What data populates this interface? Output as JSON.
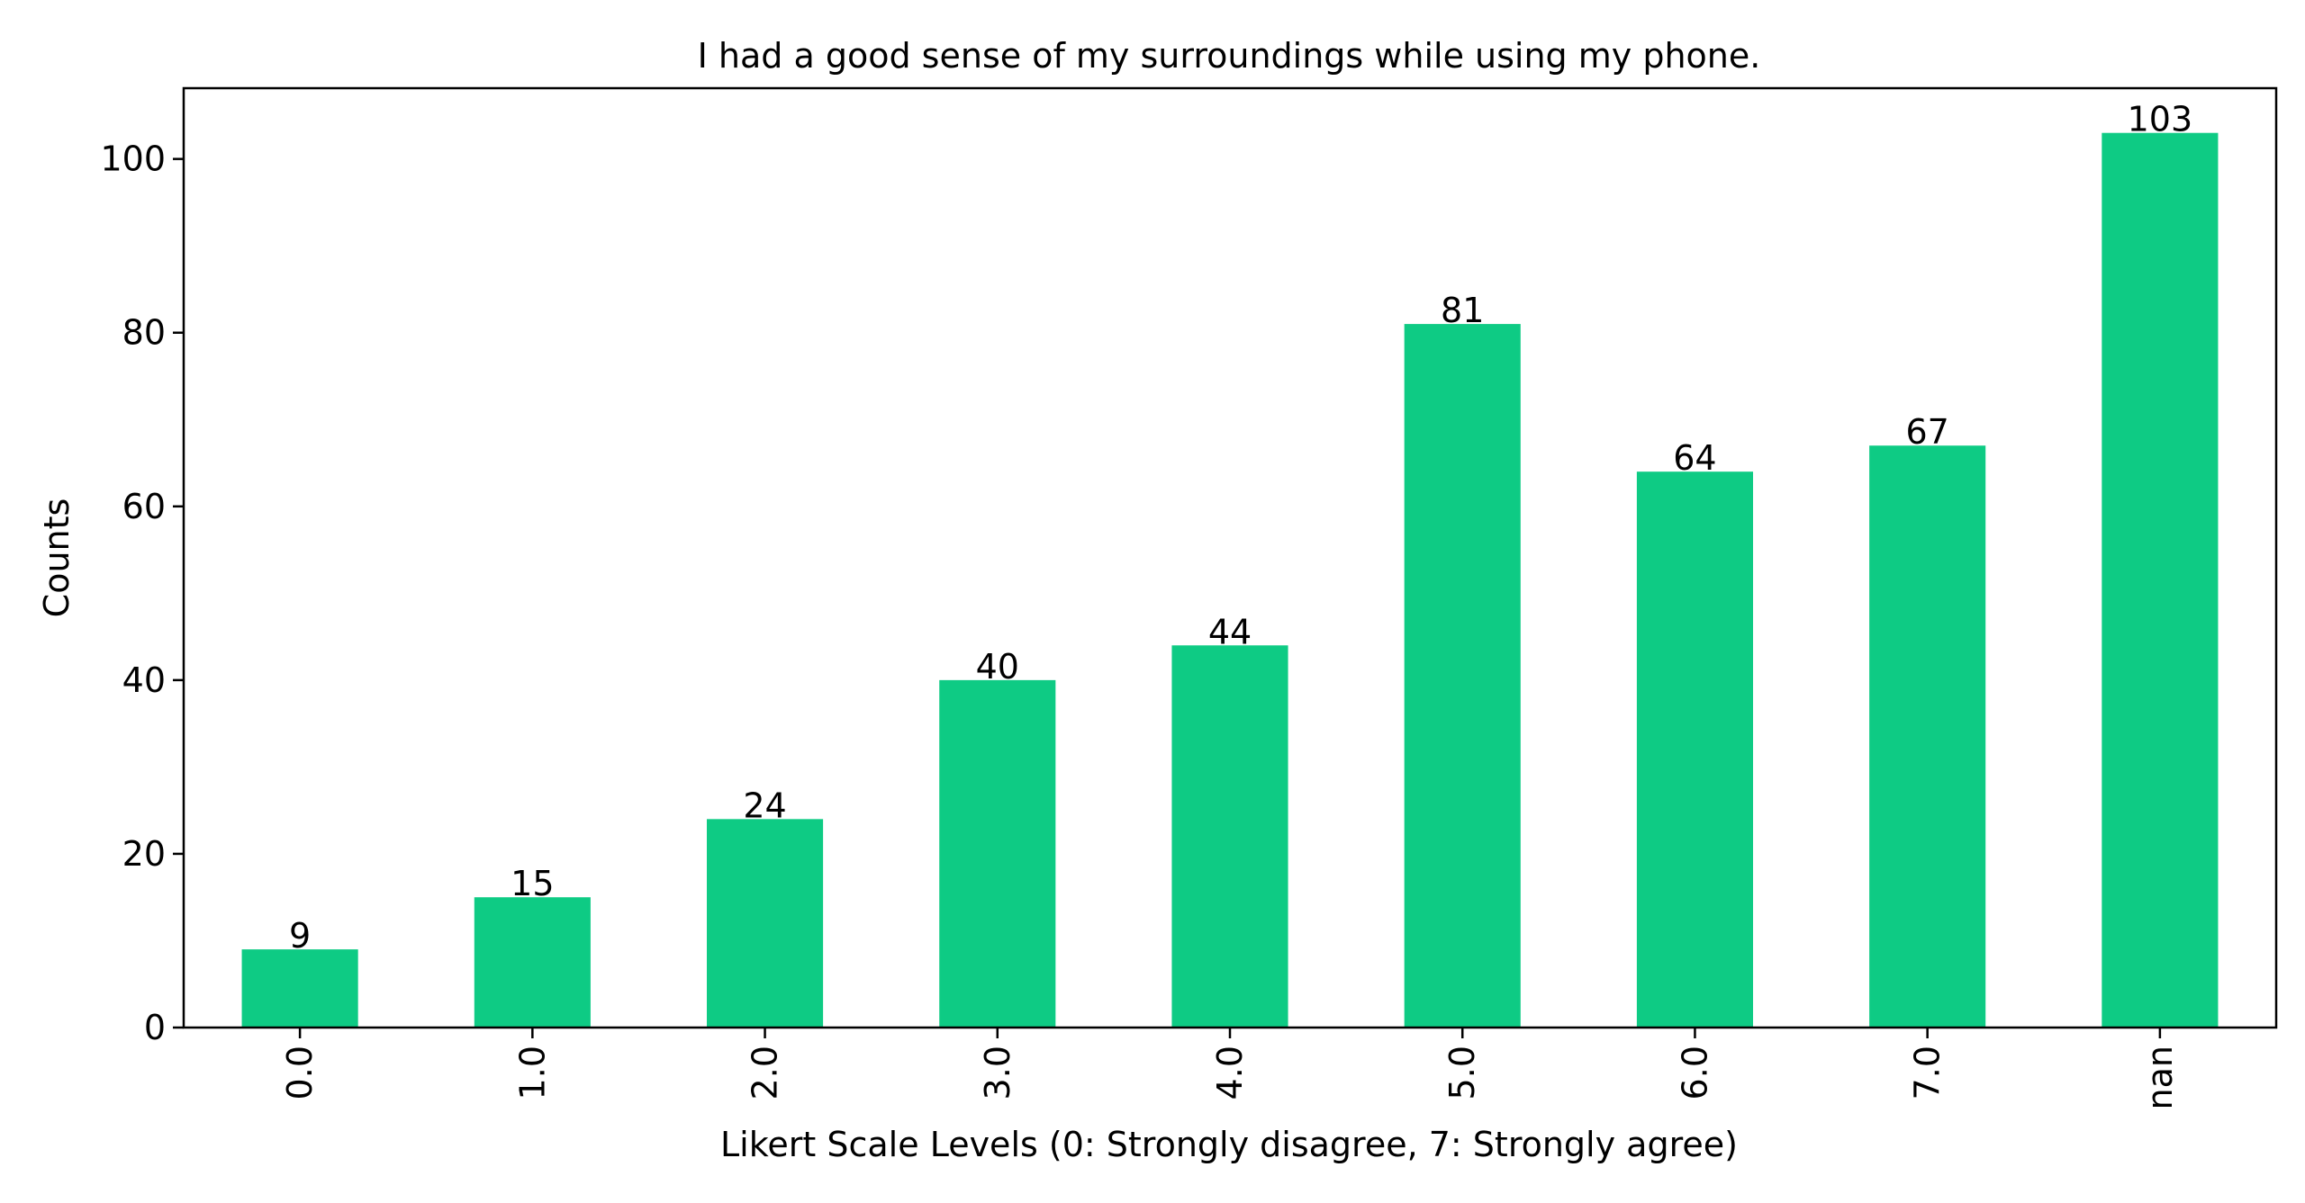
{
  "chart_data": {
    "type": "bar",
    "title": "I had a good sense of my surroundings while using my phone.",
    "xlabel": "Likert Scale Levels (0: Strongly disagree, 7: Strongly agree)",
    "ylabel": "Counts",
    "categories": [
      "0.0",
      "1.0",
      "2.0",
      "3.0",
      "4.0",
      "5.0",
      "6.0",
      "7.0",
      "nan"
    ],
    "values": [
      9,
      15,
      24,
      40,
      44,
      81,
      64,
      67,
      103
    ],
    "ylim": [
      0,
      108.15
    ],
    "yticks": [
      0,
      20,
      40,
      60,
      80,
      100
    ],
    "grid": false,
    "legend": "none",
    "bar_color": "#0ecb84",
    "x_tick_rotation": "vertical"
  }
}
